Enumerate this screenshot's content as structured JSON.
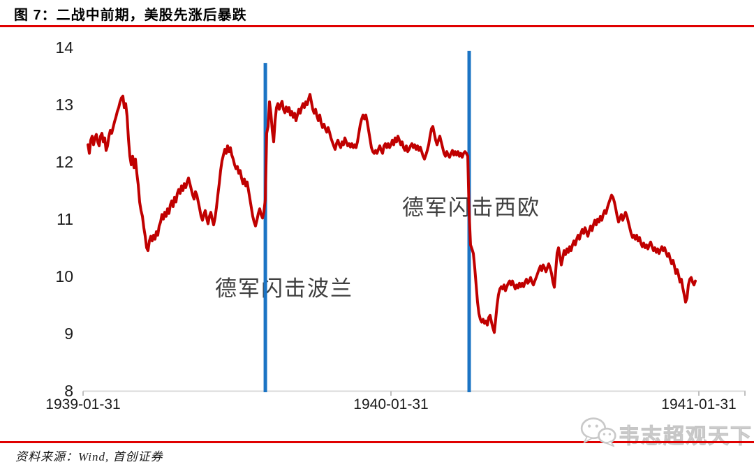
{
  "page": {
    "title": "图 7：二战中前期，美股先涨后暴跌",
    "source_note": "资料来源：Wind, 首创证券",
    "watermark": {
      "icon": "wechat-icon",
      "text": "韦志超观天下"
    },
    "accent_red": "#e00000"
  },
  "chart_data": {
    "type": "line",
    "title": "二战中前期，美股先涨后暴跌",
    "xlabel": "",
    "ylabel": "",
    "ylim": [
      8,
      14
    ],
    "xlim_years": [
      0,
      2.152
    ],
    "grid": false,
    "legend": "none",
    "line_color": "#c00000",
    "event_color": "#1b74c4",
    "axis_color": "#d9d9d9",
    "tick_color": "#b0b0b0",
    "label_color": "#1a1a1a",
    "annotation_color": "#3f3f3f",
    "y_ticks": [
      8,
      9,
      10,
      11,
      12,
      13,
      14
    ],
    "x_ticks": [
      {
        "label": "1939-01-31",
        "t_years": 0
      },
      {
        "label": "1940-01-31",
        "t_years": 1
      },
      {
        "label": "1941-01-31",
        "t_years": 2
      }
    ],
    "event_lines": [
      {
        "t_years": 0.592,
        "label": "德军闪击波兰",
        "top_value": 13.73
      },
      {
        "t_years": 1.254,
        "label": "德军闪击西欧",
        "top_value": 13.94
      }
    ],
    "series_x_start_years": 0.015873,
    "series_x_step_years": 0.0045351,
    "values": [
      12.3,
      12.15,
      12.38,
      12.45,
      12.3,
      12.42,
      12.48,
      12.35,
      12.28,
      12.45,
      12.5,
      12.35,
      12.42,
      12.2,
      12.28,
      12.45,
      12.55,
      12.5,
      12.6,
      12.7,
      12.78,
      12.88,
      12.95,
      13.05,
      13.12,
      13.15,
      12.95,
      13.02,
      12.8,
      12.4,
      12.1,
      11.95,
      12.1,
      11.9,
      12.05,
      11.8,
      11.6,
      11.3,
      11.15,
      11.05,
      10.85,
      10.7,
      10.5,
      10.45,
      10.62,
      10.7,
      10.62,
      10.72,
      10.65,
      10.78,
      10.72,
      10.88,
      10.95,
      11.08,
      11.0,
      11.12,
      11.05,
      11.18,
      11.1,
      11.25,
      11.32,
      11.22,
      11.38,
      11.3,
      11.45,
      11.52,
      11.45,
      11.58,
      11.5,
      11.62,
      11.55,
      11.65,
      11.72,
      11.62,
      11.52,
      11.42,
      11.35,
      11.48,
      11.42,
      11.3,
      11.18,
      11.05,
      10.98,
      11.08,
      11.15,
      11.02,
      10.92,
      11.05,
      11.12,
      11.0,
      10.9,
      11.02,
      11.2,
      11.42,
      11.62,
      11.85,
      12.02,
      12.12,
      12.22,
      12.15,
      12.28,
      12.18,
      12.25,
      12.12,
      12.05,
      11.95,
      11.88,
      11.92,
      11.8,
      11.85,
      11.72,
      11.62,
      11.7,
      11.58,
      11.65,
      11.5,
      11.35,
      11.2,
      11.05,
      10.95,
      10.88,
      10.98,
      11.1,
      11.18,
      11.08,
      11.02,
      11.12,
      11.35,
      12.5,
      12.62,
      13.05,
      12.85,
      12.55,
      12.35,
      12.72,
      12.95,
      13.02,
      12.92,
      13.0,
      13.06,
      12.92,
      12.86,
      12.96,
      12.88,
      12.95,
      12.82,
      12.88,
      12.78,
      12.85,
      12.72,
      12.82,
      12.92,
      12.85,
      12.95,
      13.02,
      12.95,
      13.05,
      13.0,
      13.1,
      13.18,
      13.05,
      12.92,
      12.85,
      12.92,
      12.8,
      12.72,
      12.82,
      12.68,
      12.6,
      12.66,
      12.58,
      12.52,
      12.6,
      12.52,
      12.42,
      12.35,
      12.28,
      12.22,
      12.32,
      12.38,
      12.3,
      12.25,
      12.35,
      12.3,
      12.42,
      12.35,
      12.28,
      12.32,
      12.26,
      12.32,
      12.25,
      12.3,
      12.25,
      12.35,
      12.5,
      12.65,
      12.75,
      12.82,
      12.75,
      12.82,
      12.7,
      12.55,
      12.4,
      12.25,
      12.18,
      12.15,
      12.2,
      12.15,
      12.22,
      12.28,
      12.2,
      12.15,
      12.28,
      12.32,
      12.25,
      12.32,
      12.25,
      12.3,
      12.38,
      12.3,
      12.42,
      12.35,
      12.45,
      12.38,
      12.3,
      12.35,
      12.25,
      12.2,
      12.28,
      12.18,
      12.22,
      12.28,
      12.32,
      12.25,
      12.3,
      12.22,
      12.28,
      12.2,
      12.26,
      12.18,
      12.1,
      12.05,
      12.12,
      12.2,
      12.3,
      12.45,
      12.58,
      12.62,
      12.5,
      12.38,
      12.3,
      12.38,
      12.45,
      12.35,
      12.25,
      12.15,
      12.1,
      12.18,
      12.12,
      12.08,
      12.15,
      12.2,
      12.12,
      12.18,
      12.12,
      12.18,
      12.1,
      12.15,
      12.08,
      12.15,
      12.18,
      12.15,
      12.1,
      11.1,
      10.55,
      10.48,
      10.4,
      10.15,
      9.85,
      9.55,
      9.35,
      9.25,
      9.2,
      9.25,
      9.18,
      9.22,
      9.15,
      9.28,
      9.32,
      9.2,
      9.1,
      9.02,
      9.25,
      9.5,
      9.68,
      9.78,
      9.82,
      9.78,
      9.85,
      9.75,
      9.82,
      9.88,
      9.92,
      9.85,
      9.92,
      9.85,
      9.78,
      9.85,
      9.8,
      9.88,
      9.82,
      9.88,
      9.82,
      9.9,
      9.95,
      9.88,
      9.92,
      9.98,
      9.9,
      9.85,
      9.92,
      9.98,
      10.05,
      10.12,
      10.18,
      10.1,
      10.2,
      10.15,
      10.08,
      10.15,
      10.22,
      10.15,
      10.05,
      9.9,
      9.81,
      10.1,
      10.41,
      10.5,
      10.35,
      10.2,
      10.32,
      10.45,
      10.38,
      10.48,
      10.42,
      10.52,
      10.45,
      10.55,
      10.62,
      10.55,
      10.65,
      10.72,
      10.65,
      10.75,
      10.82,
      10.75,
      10.85,
      10.78,
      10.7,
      10.8,
      10.88,
      10.8,
      10.9,
      10.98,
      10.9,
      11.0,
      10.95,
      11.05,
      10.98,
      11.08,
      11.15,
      11.1,
      11.2,
      11.28,
      11.35,
      11.42,
      11.38,
      11.3,
      11.18,
      11.05,
      10.95,
      11.02,
      11.08,
      10.98,
      11.05,
      11.12,
      11.05,
      10.95,
      10.85,
      10.75,
      10.68,
      10.72,
      10.65,
      10.72,
      10.62,
      10.68,
      10.58,
      10.52,
      10.58,
      10.5,
      10.55,
      10.48,
      10.55,
      10.6,
      10.52,
      10.45,
      10.5,
      10.42,
      10.48,
      10.4,
      10.46,
      10.52,
      10.45,
      10.5,
      10.42,
      10.35,
      10.4,
      10.3,
      10.22,
      10.28,
      10.18,
      10.05,
      10.12,
      10.02,
      9.9,
      9.95,
      9.8,
      9.68,
      9.55,
      9.62,
      9.85,
      9.95,
      9.98,
      9.9,
      9.85,
      9.92
    ]
  }
}
